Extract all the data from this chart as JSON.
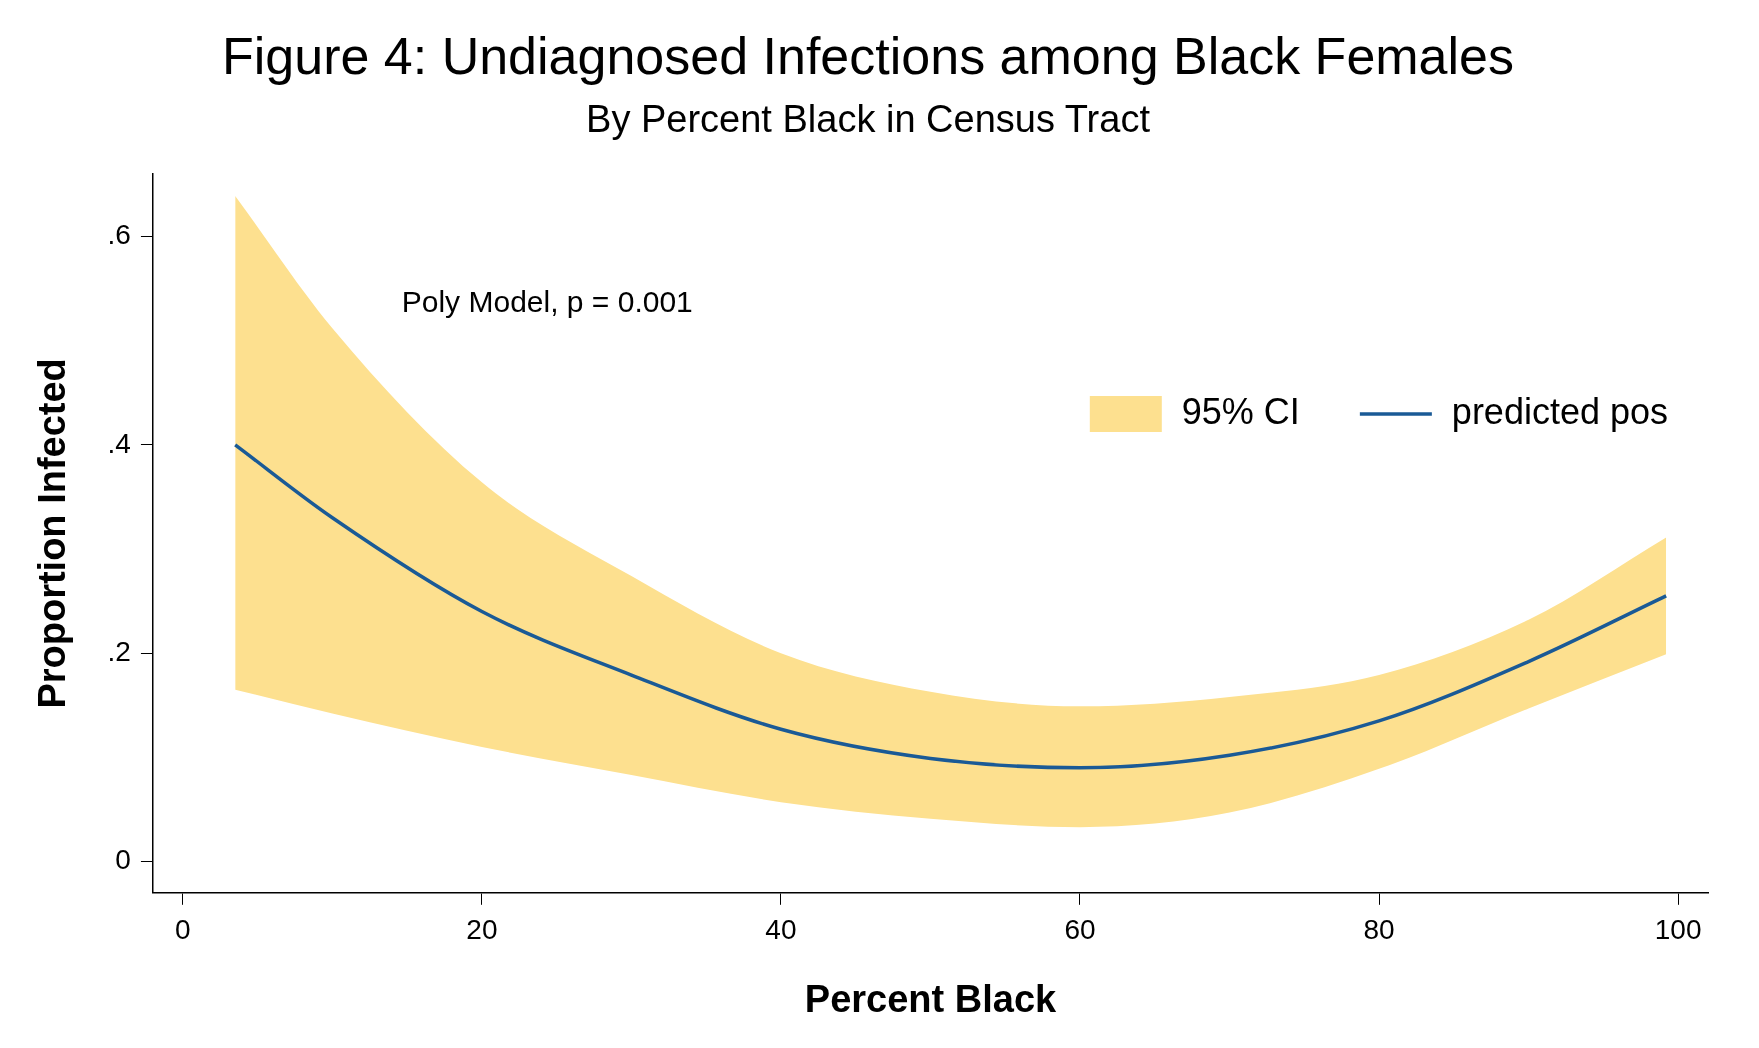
{
  "chart_data": {
    "type": "line",
    "title": "Figure 4: Undiagnosed Infections among Black Females",
    "subtitle": "By Percent Black in Census Tract",
    "xlabel": "Percent Black",
    "ylabel": "Proportion Infected",
    "annotations": [
      "Poly Model, p = 0.001"
    ],
    "x": [
      3.5,
      10,
      20,
      30,
      40,
      50,
      60,
      70,
      80,
      90,
      99.2
    ],
    "series": [
      {
        "name": "95% CI",
        "type": "area",
        "color": "#fde08f",
        "values": [
          null,
          null,
          null,
          null,
          null,
          null,
          null,
          null,
          null,
          null,
          null
        ]
      },
      {
        "name": "predicted pos",
        "type": "line",
        "color": "#1a5a96",
        "values": [
          0.4,
          0.33,
          0.24,
          0.179,
          0.127,
          0.099,
          0.09,
          0.102,
          0.135,
          0.192,
          0.255
        ],
        "lower": [
          0.165,
          0.142,
          0.11,
          0.083,
          0.057,
          0.041,
          0.033,
          0.047,
          0.089,
          0.147,
          0.199
        ],
        "upper": [
          0.639,
          0.512,
          0.364,
          0.274,
          0.2,
          0.163,
          0.149,
          0.158,
          0.179,
          0.232,
          0.311
        ]
      }
    ],
    "xlim": [
      -2,
      102
    ],
    "xticks": [
      0,
      20,
      40,
      60,
      80,
      100
    ],
    "ylim": [
      -0.03,
      0.66
    ],
    "yticks": [
      {
        "value": 0,
        "label": "0"
      },
      {
        "value": 0.2,
        "label": ".2"
      },
      {
        "value": 0.4,
        "label": ".4"
      },
      {
        "value": 0.6,
        "label": ".6"
      }
    ],
    "grid": false,
    "legend": "top right",
    "marker": "none",
    "line_style": "solid"
  }
}
